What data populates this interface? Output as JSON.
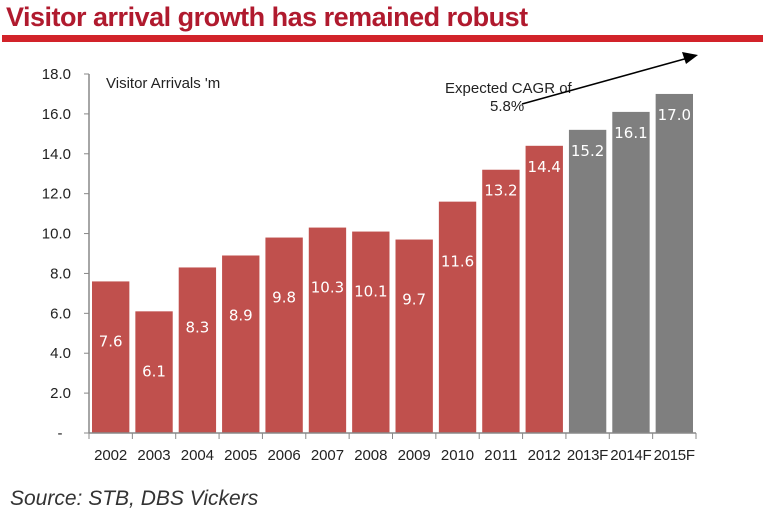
{
  "title": "Visitor arrival growth has remained robust",
  "source": "Source: STB, DBS Vickers",
  "colors": {
    "actual": "#c0504d",
    "forecast": "#7f7f7f",
    "title": "#b01a2e",
    "rule": "#d2232a"
  },
  "chart_data": {
    "type": "bar",
    "title": "Visitor arrival growth has remained robust",
    "ylabel": "Visitor Arrivals 'm",
    "xlabel": "",
    "categories": [
      "2002",
      "2003",
      "2004",
      "2005",
      "2006",
      "2007",
      "2008",
      "2009",
      "2010",
      "2011",
      "2012",
      "2013F",
      "2014F",
      "2015F"
    ],
    "values": [
      7.6,
      6.1,
      8.3,
      8.9,
      9.8,
      10.3,
      10.1,
      9.7,
      11.6,
      13.2,
      14.4,
      15.2,
      16.1,
      17.0
    ],
    "value_labels": [
      "7.6",
      "6.1",
      "8.3",
      "8.9",
      "9.8",
      "10.3",
      "10.1",
      "9.7",
      "11.6",
      "13.2",
      "14.4",
      "15.2",
      "16.1",
      "17.0"
    ],
    "forecast": [
      false,
      false,
      false,
      false,
      false,
      false,
      false,
      false,
      false,
      false,
      false,
      true,
      true,
      true
    ],
    "ylim": [
      0,
      18
    ],
    "yticks": [
      "-",
      "2.0",
      "4.0",
      "6.0",
      "8.0",
      "10.0",
      "12.0",
      "14.0",
      "16.0",
      "18.0"
    ],
    "annotation": {
      "line1": "Expected CAGR of",
      "line2": "5.8%"
    },
    "grid": false,
    "legend": "none"
  }
}
